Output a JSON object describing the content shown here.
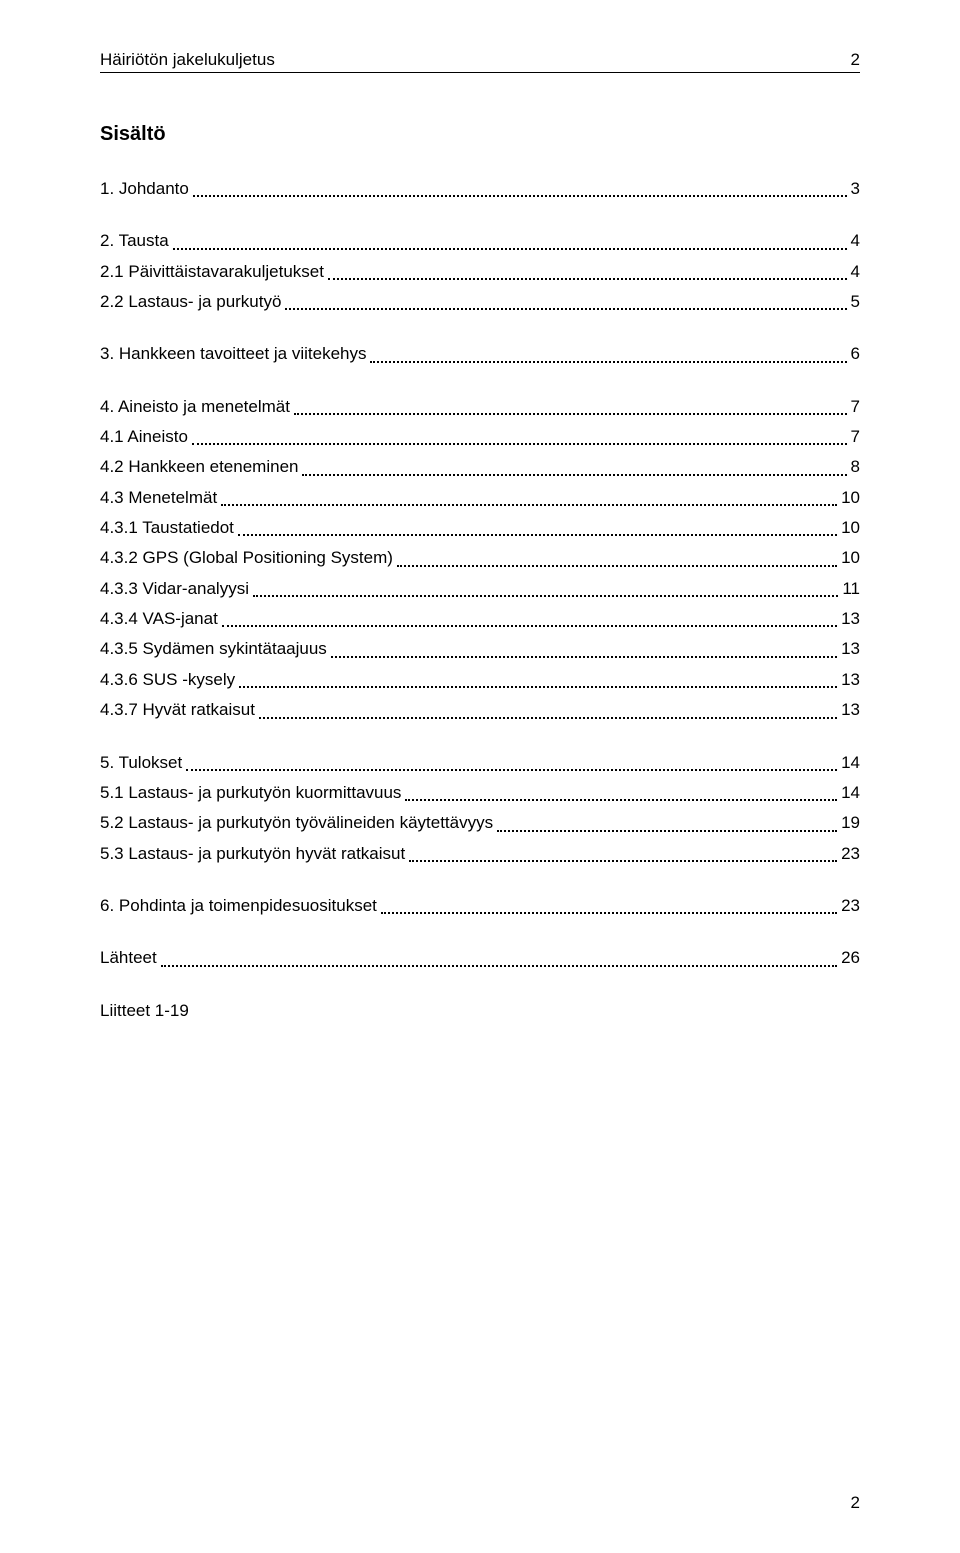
{
  "header": {
    "title": "Häiriötön jakelukuljetus",
    "pageTop": "2"
  },
  "sectionTitle": "Sisältö",
  "toc": {
    "groups": [
      [
        {
          "label": "1. Johdanto",
          "page": "3"
        }
      ],
      [
        {
          "label": "2. Tausta",
          "page": "4"
        },
        {
          "label": "2.1 Päivittäistavarakuljetukset",
          "page": "4"
        },
        {
          "label": "2.2 Lastaus- ja purkutyö",
          "page": "5"
        }
      ],
      [
        {
          "label": "3. Hankkeen tavoitteet ja viitekehys",
          "page": "6"
        }
      ],
      [
        {
          "label": "4. Aineisto ja menetelmät",
          "page": "7"
        },
        {
          "label": "4.1 Aineisto",
          "page": "7"
        },
        {
          "label": "4.2 Hankkeen eteneminen",
          "page": "8"
        },
        {
          "label": "4.3 Menetelmät",
          "page": "10"
        },
        {
          "label": "4.3.1 Taustatiedot",
          "page": "10"
        },
        {
          "label": "4.3.2 GPS (Global Positioning System)",
          "page": "10"
        },
        {
          "label": "4.3.3 Vidar-analyysi",
          "page": "11"
        },
        {
          "label": "4.3.4 VAS-janat",
          "page": "13"
        },
        {
          "label": "4.3.5 Sydämen sykintätaajuus",
          "page": "13"
        },
        {
          "label": "4.3.6 SUS -kysely",
          "page": "13"
        },
        {
          "label": "4.3.7 Hyvät ratkaisut",
          "page": "13"
        }
      ],
      [
        {
          "label": "5. Tulokset",
          "page": "14"
        },
        {
          "label": "5.1 Lastaus- ja purkutyön kuormittavuus",
          "page": "14"
        },
        {
          "label": "5.2 Lastaus- ja purkutyön työvälineiden käytettävyys",
          "page": "19"
        },
        {
          "label": "5.3 Lastaus- ja purkutyön hyvät ratkaisut",
          "page": "23"
        }
      ],
      [
        {
          "label": "6. Pohdinta ja toimenpidesuositukset",
          "page": "23"
        }
      ],
      [
        {
          "label": "Lähteet",
          "page": "26"
        }
      ],
      [
        {
          "label": "Liitteet 1-19",
          "page": ""
        }
      ]
    ]
  },
  "footer": {
    "pageBottom": "2"
  }
}
